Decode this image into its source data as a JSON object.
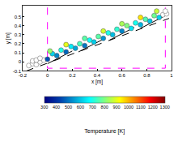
{
  "chart_data": {
    "type": "scatter",
    "xlabel": "x [m]",
    "ylabel": "y [m]",
    "xlim": [
      -0.2,
      1
    ],
    "xticks": [
      -0.2,
      0,
      0.2,
      0.4,
      0.6,
      0.8,
      1
    ],
    "ylim": [
      -0.1,
      0.62
    ],
    "yticks": [
      -0.1,
      0,
      0.1,
      0.2,
      0.3,
      0.4,
      0.5
    ],
    "colorbar": {
      "title": "Temperature [K]",
      "range": [
        300,
        1300
      ],
      "ticks": [
        300,
        400,
        500,
        600,
        700,
        800,
        900,
        1000,
        1100,
        1200,
        1300
      ]
    },
    "series": [
      {
        "type": "line",
        "color": "#ff00ff",
        "line_style": "dashed",
        "x": [
          0,
          0,
          0.95,
          0.95
        ],
        "y": [
          0.6,
          -0.07,
          -0.07,
          0.6
        ]
      },
      {
        "type": "line",
        "color": "#000000",
        "line_style": "dashed",
        "x": [
          -0.17,
          0.98
        ],
        "y": [
          -0.1,
          0.48
        ]
      },
      {
        "type": "line",
        "color": "#000000",
        "line_style": "solid",
        "x": [
          0.0,
          0.2,
          null,
          0.25,
          0.45,
          null,
          0.5,
          0.7,
          null,
          0.75,
          0.95
        ],
        "y": [
          -0.02,
          0.12,
          null,
          0.11,
          0.25,
          null,
          0.24,
          0.38,
          null,
          0.37,
          0.51
        ]
      },
      {
        "type": "scatter",
        "color": "#ffffff",
        "x": [
          -0.15,
          -0.12,
          -0.09,
          -0.12,
          -0.06,
          -0.09,
          -0.03,
          -0.06,
          0.93,
          0.96,
          0.95
        ],
        "y": [
          -0.04,
          -0.02,
          -0.03,
          0.01,
          0.0,
          0.02,
          0.02,
          0.04,
          0.52,
          0.53,
          0.56
        ]
      },
      {
        "type": "scatter",
        "x": [
          0.0,
          0.075,
          0.15,
          0.225,
          0.3,
          0.375,
          0.45,
          0.525,
          0.6,
          0.675,
          0.75,
          0.825,
          0.9,
          0.04,
          0.11,
          0.19,
          0.26,
          0.34,
          0.41,
          0.49,
          0.56,
          0.64,
          0.71,
          0.79,
          0.86,
          0.02,
          0.15,
          0.3,
          0.45,
          0.6,
          0.75,
          0.88
        ],
        "y": [
          0.03,
          0.07,
          0.11,
          0.15,
          0.18,
          0.22,
          0.26,
          0.3,
          0.34,
          0.37,
          0.41,
          0.45,
          0.49,
          0.09,
          0.13,
          0.17,
          0.2,
          0.24,
          0.28,
          0.32,
          0.36,
          0.4,
          0.43,
          0.47,
          0.51,
          0.12,
          0.19,
          0.26,
          0.34,
          0.42,
          0.49,
          0.56
        ],
        "temperature": [
          450,
          520,
          480,
          560,
          500,
          610,
          540,
          590,
          520,
          640,
          580,
          600,
          620,
          620,
          700,
          650,
          740,
          680,
          760,
          700,
          720,
          800,
          690,
          750,
          780,
          820,
          900,
          760,
          880,
          840,
          950,
          870
        ]
      }
    ]
  }
}
